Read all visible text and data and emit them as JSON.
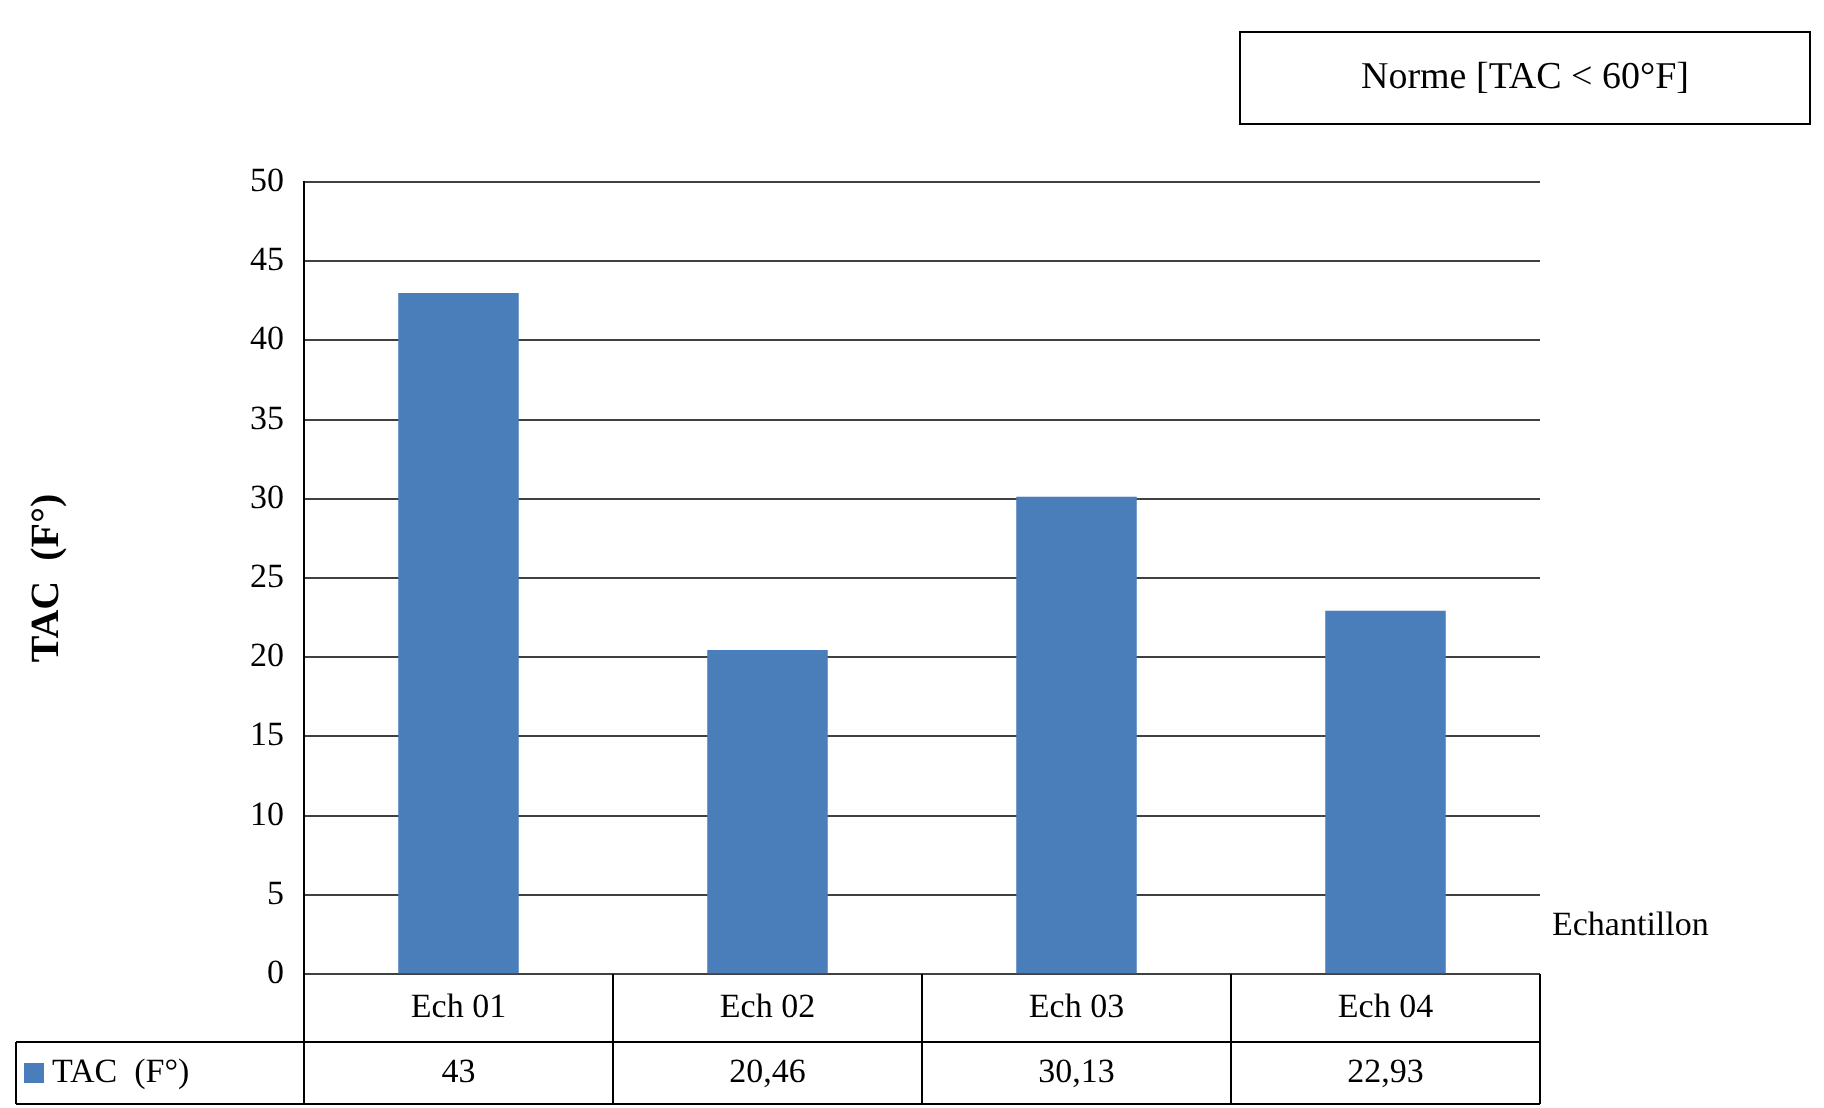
{
  "chart_data": {
    "type": "bar",
    "ylabel": "TAC  (F°)",
    "xlabel": "Echantillon",
    "categories": [
      "Ech 01",
      "Ech 02",
      "Ech 03",
      "Ech 04"
    ],
    "series": [
      {
        "name": "TAC  (F°)",
        "color": "#4a7ebb",
        "values": [
          43,
          20.46,
          30.13,
          22.93
        ],
        "value_labels": [
          "43",
          "20,46",
          "30,13",
          "22,93"
        ]
      }
    ],
    "ylim": [
      0,
      50
    ],
    "yticks": [
      0,
      5,
      10,
      15,
      20,
      25,
      30,
      35,
      40,
      45,
      50
    ],
    "grid": "y",
    "legend": "bottom",
    "annotations": [
      "Norme [TAC < 60°F]"
    ]
  }
}
